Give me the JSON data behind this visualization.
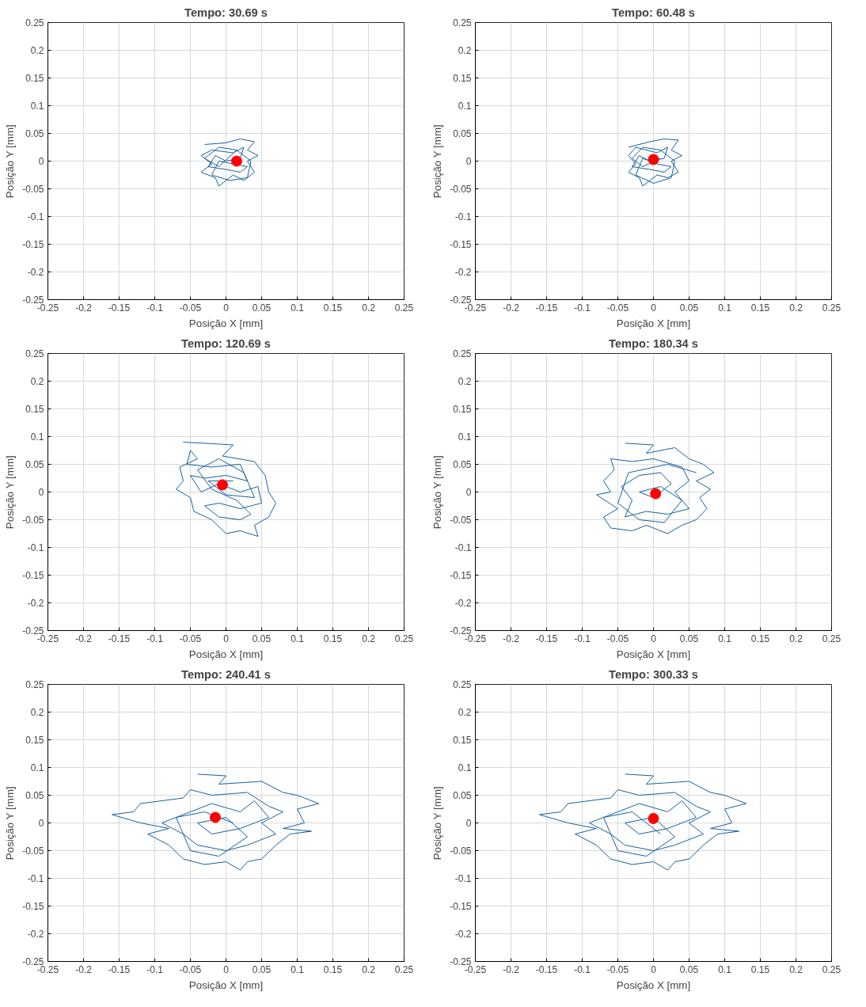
{
  "chart_data": [
    {
      "type": "line",
      "title": "Tempo: 30.69 s",
      "xlabel": "Posição X [mm]",
      "ylabel": "Posição Y [mm]",
      "xlim": [
        -0.25,
        0.25
      ],
      "ylim": [
        -0.25,
        0.25
      ],
      "xticks": [
        -0.25,
        -0.2,
        -0.15,
        -0.1,
        -0.05,
        0,
        0.05,
        0.1,
        0.15,
        0.2,
        0.25
      ],
      "yticks": [
        -0.25,
        -0.2,
        -0.15,
        -0.1,
        -0.05,
        0,
        0.05,
        0.1,
        0.15,
        0.2,
        0.25
      ],
      "grid": true,
      "series": [
        {
          "color": "#1660a0",
          "marker": "none",
          "x": [
            -0.03,
            0.0,
            0.02,
            0.04,
            0.03,
            0.045,
            0.03,
            0.04,
            0.025,
            0.01,
            -0.01,
            -0.015,
            -0.035,
            -0.02,
            -0.035,
            -0.02,
            0.01,
            0.025,
            0.02,
            0.0,
            -0.015,
            -0.025,
            0.0,
            0.02,
            0.03,
            0.01,
            -0.01,
            -0.02,
            0.005,
            0.03,
            0.035,
            0.015,
            -0.01,
            -0.03,
            -0.01,
            0.015
          ],
          "values": [
            0.03,
            0.033,
            0.04,
            0.035,
            0.02,
            0.01,
            0.0,
            -0.02,
            -0.035,
            -0.025,
            -0.045,
            -0.03,
            -0.02,
            -0.005,
            0.01,
            0.02,
            0.015,
            0.025,
            0.005,
            0.0,
            0.01,
            -0.01,
            -0.015,
            -0.02,
            -0.01,
            -0.005,
            0.0,
            -0.025,
            -0.035,
            -0.03,
            0.0,
            0.02,
            0.025,
            0.005,
            -0.01,
            0.02
          ]
        },
        {
          "type": "scatter",
          "color": "#ff0000",
          "marker": "circle",
          "x": [
            0.015
          ],
          "values": [
            0.0
          ]
        }
      ]
    },
    {
      "type": "line",
      "title": "Tempo: 60.48 s",
      "xlabel": "Posição X [mm]",
      "ylabel": "Posição Y [mm]",
      "xlim": [
        -0.25,
        0.25
      ],
      "ylim": [
        -0.25,
        0.25
      ],
      "xticks": [
        -0.25,
        -0.2,
        -0.15,
        -0.1,
        -0.05,
        0,
        0.05,
        0.1,
        0.15,
        0.2,
        0.25
      ],
      "yticks": [
        -0.25,
        -0.2,
        -0.15,
        -0.1,
        -0.05,
        0,
        0.05,
        0.1,
        0.15,
        0.2,
        0.25
      ],
      "grid": true,
      "series": [
        {
          "color": "#1660a0",
          "marker": "none",
          "x": [
            -0.035,
            -0.005,
            0.015,
            0.035,
            0.025,
            0.04,
            0.025,
            0.035,
            0.02,
            0.005,
            -0.015,
            -0.02,
            -0.035,
            -0.025,
            -0.035,
            -0.025,
            0.005,
            0.02,
            0.015,
            -0.005,
            -0.02,
            -0.03,
            -0.005,
            0.015,
            0.025,
            0.005,
            -0.015,
            -0.025,
            0.0,
            0.025,
            0.03,
            0.01,
            -0.015,
            -0.03,
            -0.015,
            0.01
          ],
          "values": [
            0.025,
            0.035,
            0.04,
            0.038,
            0.02,
            0.01,
            0.0,
            -0.02,
            -0.03,
            -0.025,
            -0.045,
            -0.03,
            -0.02,
            -0.005,
            0.01,
            0.025,
            0.015,
            0.025,
            0.005,
            0.0,
            0.01,
            -0.01,
            -0.015,
            -0.02,
            -0.01,
            -0.005,
            0.005,
            -0.025,
            -0.04,
            -0.03,
            0.0,
            0.02,
            0.025,
            0.005,
            -0.01,
            0.005
          ]
        },
        {
          "type": "scatter",
          "color": "#ff0000",
          "marker": "circle",
          "x": [
            0.0
          ],
          "values": [
            0.003
          ]
        }
      ]
    },
    {
      "type": "line",
      "title": "Tempo: 120.69 s",
      "xlabel": "Posição X [mm]",
      "ylabel": "Posição Y [mm]",
      "xlim": [
        -0.25,
        0.25
      ],
      "ylim": [
        -0.25,
        0.25
      ],
      "xticks": [
        -0.25,
        -0.2,
        -0.15,
        -0.1,
        -0.05,
        0,
        0.05,
        0.1,
        0.15,
        0.2,
        0.25
      ],
      "yticks": [
        -0.25,
        -0.2,
        -0.15,
        -0.1,
        -0.05,
        0,
        0.05,
        0.1,
        0.15,
        0.2,
        0.25
      ],
      "grid": true,
      "series": [
        {
          "color": "#1660a0",
          "marker": "none",
          "x": [
            -0.06,
            -0.03,
            0.01,
            -0.005,
            0.04,
            0.055,
            0.06,
            0.07,
            0.06,
            0.04,
            0.045,
            0.02,
            0.0,
            -0.02,
            -0.045,
            -0.05,
            -0.07,
            -0.06,
            -0.065,
            -0.04,
            -0.05,
            -0.055,
            -0.02,
            0.02,
            0.03,
            0.0,
            -0.03,
            -0.05,
            -0.035,
            -0.01,
            0.02,
            0.045,
            0.05,
            0.02,
            -0.01,
            -0.03,
            -0.01,
            0.02,
            0.035,
            0.015,
            -0.02,
            -0.04,
            -0.01,
            0.025,
            0.04,
            0.0,
            -0.025,
            0.01
          ],
          "values": [
            0.09,
            0.088,
            0.085,
            0.065,
            0.055,
            0.03,
            0.0,
            -0.02,
            -0.045,
            -0.06,
            -0.08,
            -0.07,
            -0.075,
            -0.05,
            -0.035,
            -0.01,
            0.005,
            0.02,
            0.045,
            0.06,
            0.075,
            0.05,
            0.045,
            0.05,
            0.02,
            0.03,
            0.025,
            0.03,
            0.0,
            0.015,
            0.0,
            0.01,
            -0.02,
            -0.03,
            -0.02,
            -0.025,
            -0.045,
            -0.05,
            -0.04,
            -0.015,
            0.005,
            0.04,
            0.06,
            0.035,
            -0.01,
            -0.005,
            0.02,
            0.02
          ]
        },
        {
          "type": "scatter",
          "color": "#ff0000",
          "marker": "circle",
          "x": [
            -0.005
          ],
          "values": [
            0.013
          ]
        }
      ]
    },
    {
      "type": "line",
      "title": "Tempo: 180.34 s",
      "xlabel": "Posição X [mm]",
      "ylabel": "Posição Y [mm]",
      "xlim": [
        -0.25,
        0.25
      ],
      "ylim": [
        -0.25,
        0.25
      ],
      "xticks": [
        -0.25,
        -0.2,
        -0.15,
        -0.1,
        -0.05,
        0,
        0.05,
        0.1,
        0.15,
        0.2,
        0.25
      ],
      "yticks": [
        -0.25,
        -0.2,
        -0.15,
        -0.1,
        -0.05,
        0,
        0.05,
        0.1,
        0.15,
        0.2,
        0.25
      ],
      "grid": true,
      "series": [
        {
          "color": "#1660a0",
          "marker": "none",
          "x": [
            -0.04,
            0.0,
            -0.01,
            0.03,
            0.05,
            0.07,
            0.085,
            0.06,
            0.08,
            0.065,
            0.075,
            0.06,
            0.04,
            0.02,
            -0.01,
            -0.03,
            -0.06,
            -0.07,
            -0.05,
            -0.08,
            -0.06,
            -0.07,
            -0.055,
            -0.06,
            -0.03,
            0.0,
            0.04,
            0.05,
            0.03,
            0.05,
            0.02,
            -0.01,
            -0.04,
            -0.03,
            -0.045,
            -0.02,
            0.01,
            0.025,
            0.0,
            -0.02,
            0.01,
            0.04,
            0.015,
            -0.02,
            -0.05,
            -0.035,
            0.02,
            0.06
          ],
          "values": [
            0.088,
            0.085,
            0.07,
            0.08,
            0.06,
            0.05,
            0.035,
            0.02,
            0.005,
            -0.01,
            -0.03,
            -0.05,
            -0.06,
            -0.075,
            -0.06,
            -0.07,
            -0.065,
            -0.045,
            -0.03,
            -0.005,
            0.0,
            0.02,
            0.04,
            0.06,
            0.055,
            0.06,
            0.045,
            0.02,
            0.0,
            -0.03,
            -0.04,
            -0.035,
            -0.045,
            -0.015,
            0.01,
            0.03,
            0.035,
            0.015,
            -0.01,
            0.0,
            0.01,
            -0.015,
            -0.055,
            -0.05,
            -0.02,
            0.035,
            0.05,
            0.035
          ]
        },
        {
          "type": "scatter",
          "color": "#ff0000",
          "marker": "circle",
          "x": [
            0.003
          ],
          "values": [
            -0.003
          ]
        }
      ]
    },
    {
      "type": "line",
      "title": "Tempo: 240.41 s",
      "xlabel": "Posição X [mm]",
      "ylabel": "Posição Y [mm]",
      "xlim": [
        -0.25,
        0.25
      ],
      "ylim": [
        -0.25,
        0.25
      ],
      "xticks": [
        -0.25,
        -0.2,
        -0.15,
        -0.1,
        -0.05,
        0,
        0.05,
        0.1,
        0.15,
        0.2,
        0.25
      ],
      "yticks": [
        -0.25,
        -0.2,
        -0.15,
        -0.1,
        -0.05,
        0,
        0.05,
        0.1,
        0.15,
        0.2,
        0.25
      ],
      "grid": true,
      "series": [
        {
          "color": "#1660a0",
          "marker": "none",
          "x": [
            -0.04,
            0.0,
            -0.01,
            0.05,
            0.08,
            0.1,
            0.13,
            0.1,
            0.11,
            0.08,
            0.12,
            0.09,
            0.07,
            0.05,
            0.03,
            0.02,
            0.0,
            -0.03,
            -0.06,
            -0.08,
            -0.11,
            -0.08,
            -0.12,
            -0.16,
            -0.13,
            -0.12,
            -0.06,
            -0.05,
            -0.02,
            0.03,
            0.06,
            0.08,
            0.05,
            0.07,
            0.03,
            0.0,
            -0.04,
            -0.06,
            -0.09,
            -0.05,
            -0.02,
            0.02,
            0.04,
            0.06,
            0.02,
            -0.02,
            -0.04,
            0.0,
            0.03,
            -0.01,
            -0.05,
            -0.07,
            -0.03,
            0.01
          ],
          "values": [
            0.088,
            0.085,
            0.07,
            0.075,
            0.055,
            0.05,
            0.035,
            0.025,
            0.0,
            -0.01,
            -0.015,
            -0.02,
            -0.04,
            -0.065,
            -0.07,
            -0.085,
            -0.07,
            -0.075,
            -0.065,
            -0.04,
            -0.02,
            -0.01,
            0.0,
            0.015,
            0.02,
            0.035,
            0.045,
            0.06,
            0.05,
            0.055,
            0.03,
            0.02,
            0.0,
            -0.02,
            -0.04,
            -0.05,
            -0.04,
            -0.02,
            0.0,
            0.02,
            0.035,
            0.02,
            0.04,
            0.01,
            -0.01,
            -0.02,
            0.0,
            0.01,
            -0.025,
            -0.06,
            -0.05,
            0.01,
            0.02,
            0.0
          ]
        },
        {
          "type": "scatter",
          "color": "#ff0000",
          "marker": "circle",
          "x": [
            -0.015
          ],
          "values": [
            0.01
          ]
        }
      ]
    },
    {
      "type": "line",
      "title": "Tempo: 300.33 s",
      "xlabel": "Posição X [mm]",
      "ylabel": "Posição Y [mm]",
      "xlim": [
        -0.25,
        0.25
      ],
      "ylim": [
        -0.25,
        0.25
      ],
      "xticks": [
        -0.25,
        -0.2,
        -0.15,
        -0.1,
        -0.05,
        0,
        0.05,
        0.1,
        0.15,
        0.2,
        0.25
      ],
      "yticks": [
        -0.25,
        -0.2,
        -0.15,
        -0.1,
        -0.05,
        0,
        0.05,
        0.1,
        0.15,
        0.2,
        0.25
      ],
      "grid": true,
      "series": [
        {
          "color": "#1660a0",
          "marker": "none",
          "x": [
            -0.04,
            0.0,
            -0.01,
            0.05,
            0.08,
            0.1,
            0.13,
            0.1,
            0.11,
            0.08,
            0.12,
            0.09,
            0.07,
            0.05,
            0.03,
            0.02,
            0.0,
            -0.03,
            -0.06,
            -0.08,
            -0.11,
            -0.08,
            -0.12,
            -0.16,
            -0.13,
            -0.12,
            -0.06,
            -0.05,
            -0.02,
            0.03,
            0.06,
            0.08,
            0.05,
            0.07,
            0.03,
            0.0,
            -0.04,
            -0.06,
            -0.09,
            -0.05,
            -0.02,
            0.02,
            0.04,
            0.06,
            0.02,
            -0.02,
            -0.04,
            0.0,
            0.03,
            -0.01,
            -0.05,
            -0.07,
            -0.03,
            0.01
          ],
          "values": [
            0.088,
            0.085,
            0.07,
            0.075,
            0.055,
            0.05,
            0.035,
            0.025,
            0.0,
            -0.01,
            -0.015,
            -0.02,
            -0.04,
            -0.065,
            -0.07,
            -0.085,
            -0.07,
            -0.075,
            -0.065,
            -0.04,
            -0.02,
            -0.01,
            0.0,
            0.015,
            0.02,
            0.035,
            0.045,
            0.06,
            0.05,
            0.055,
            0.03,
            0.02,
            0.0,
            -0.02,
            -0.04,
            -0.05,
            -0.04,
            -0.02,
            0.0,
            0.02,
            0.035,
            0.02,
            0.04,
            0.01,
            -0.01,
            -0.02,
            0.0,
            0.01,
            -0.025,
            -0.06,
            -0.05,
            0.01,
            0.02,
            -0.02
          ]
        },
        {
          "type": "scatter",
          "color": "#ff0000",
          "marker": "circle",
          "x": [
            0.0
          ],
          "values": [
            0.008
          ]
        }
      ]
    }
  ]
}
